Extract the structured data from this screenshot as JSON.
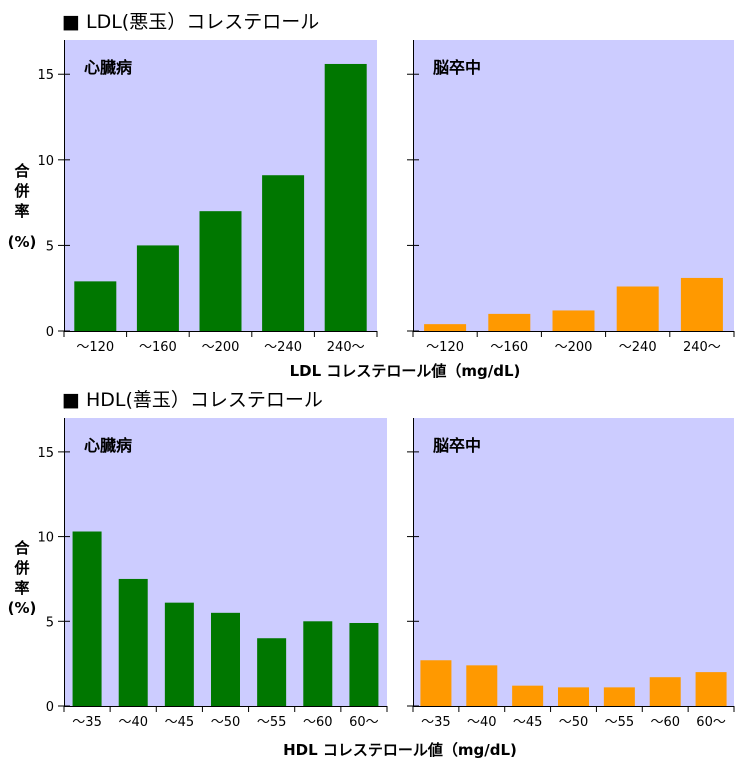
{
  "colors": {
    "panel_bg": "#ccccff",
    "heart_bar": "#007700",
    "stroke_bar": "#ff9900",
    "axis": "#000000"
  },
  "sections": [
    {
      "title": "■ LDL(悪玉）コレステロール",
      "ylabel_chars": [
        "合",
        "併",
        "率"
      ],
      "ylabel_unit": "(%)",
      "xlabel": "LDL コレステロール値（mg/dL)"
    },
    {
      "title": "■ HDL(善玉）コレステロール",
      "ylabel_chars": [
        "合",
        "併",
        "率"
      ],
      "ylabel_unit": "(%)",
      "xlabel": "HDL コレステロール値（mg/dL)"
    }
  ],
  "chart_data": [
    {
      "type": "bar",
      "title": "心臓病",
      "categories": [
        "～120",
        "～160",
        "～200",
        "～240",
        "240～"
      ],
      "values": [
        2.9,
        5.0,
        7.0,
        9.1,
        15.6
      ],
      "ylim": [
        0,
        17
      ],
      "yticks": [
        0,
        5,
        10,
        15
      ],
      "color": "#007700"
    },
    {
      "type": "bar",
      "title": "脳卒中",
      "categories": [
        "～120",
        "～160",
        "～200",
        "～240",
        "240～"
      ],
      "values": [
        0.4,
        1.0,
        1.2,
        2.6,
        3.1
      ],
      "ylim": [
        0,
        17
      ],
      "yticks": [
        0,
        5,
        10,
        15
      ],
      "color": "#ff9900"
    },
    {
      "type": "bar",
      "title": "心臓病",
      "categories": [
        "～35",
        "～40",
        "～45",
        "～50",
        "～55",
        "～60",
        "60～"
      ],
      "values": [
        10.3,
        7.5,
        6.1,
        5.5,
        4.0,
        5.0,
        4.9
      ],
      "ylim": [
        0,
        17
      ],
      "yticks": [
        0,
        5,
        10,
        15
      ],
      "color": "#007700"
    },
    {
      "type": "bar",
      "title": "脳卒中",
      "categories": [
        "～35",
        "～40",
        "～45",
        "～50",
        "～55",
        "～60",
        "60～"
      ],
      "values": [
        2.7,
        2.4,
        1.2,
        1.1,
        1.1,
        1.7,
        2.0
      ],
      "ylim": [
        0,
        17
      ],
      "yticks": [
        0,
        5,
        10,
        15
      ],
      "color": "#ff9900"
    }
  ]
}
